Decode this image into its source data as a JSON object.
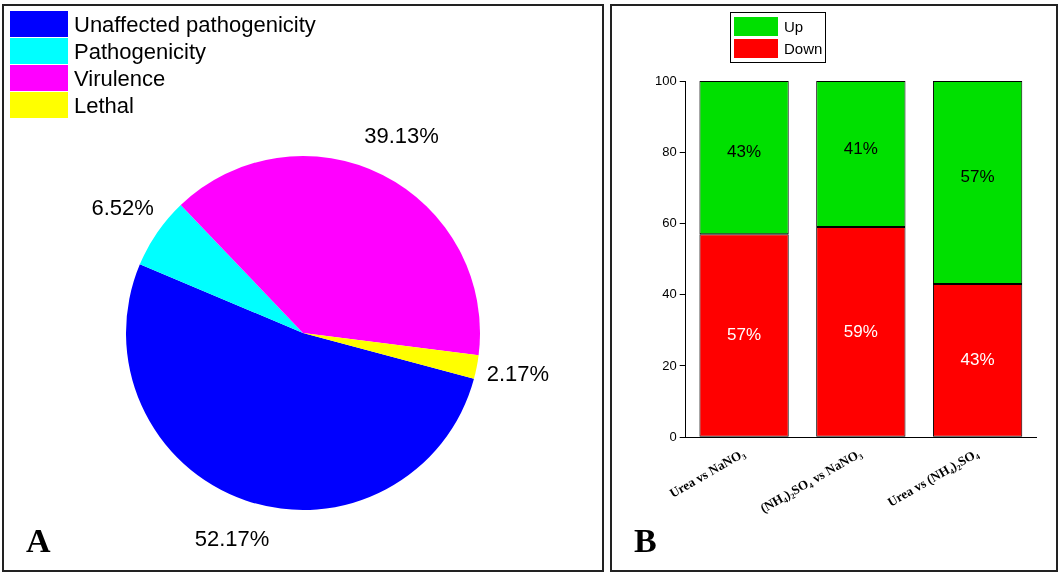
{
  "chart_data": [
    {
      "type": "pie",
      "categories": [
        "Unaffected pathogenicity",
        "Pathogenicity",
        "Virulence",
        "Lethal"
      ],
      "values": [
        52.17,
        6.52,
        39.13,
        2.17
      ],
      "colors": [
        "#0000ff",
        "#00ffff",
        "#ff00ff",
        "#ffff00"
      ],
      "value_labels": [
        "52.17%",
        "6.52%",
        "39.13%",
        "2.17%"
      ],
      "legend": "top left",
      "annotations": [
        "A"
      ]
    },
    {
      "type": "bar",
      "stacked": true,
      "categories": [
        "Urea vs NaNO₃",
        "(NH₄)₂SO₄ vs NaNO₃",
        "Urea vs (NH₄)₂SO₄"
      ],
      "series": [
        {
          "name": "Down",
          "color": "#ff0000",
          "values": [
            57,
            59,
            43
          ],
          "value_labels": [
            "57%",
            "59%",
            "43%"
          ]
        },
        {
          "name": "Up",
          "color": "#00e000",
          "values": [
            43,
            41,
            57
          ],
          "value_labels": [
            "43%",
            "41%",
            "57%"
          ]
        }
      ],
      "ylim": [
        0,
        100
      ],
      "yticks": [
        0,
        20,
        40,
        60,
        80,
        100
      ],
      "legend": "top left",
      "annotations": [
        "B"
      ]
    }
  ]
}
